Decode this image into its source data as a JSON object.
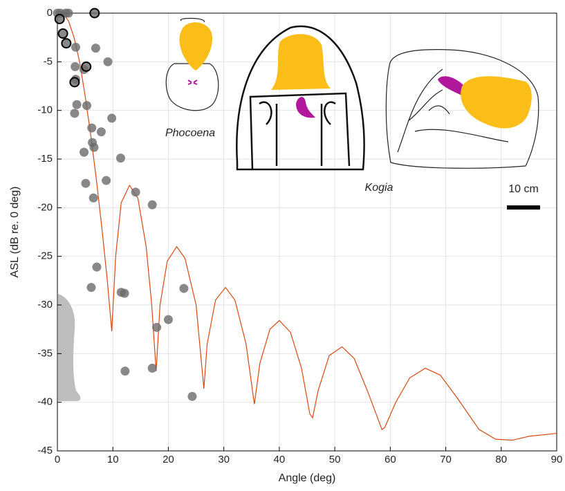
{
  "chart_data": {
    "type": "scatter",
    "xlabel": "Angle (deg)",
    "ylabel": "ASL (dB re. 0 deg)",
    "xlim": [
      0,
      90
    ],
    "ylim": [
      -45,
      0
    ],
    "xticks": [
      0,
      10,
      20,
      30,
      40,
      50,
      60,
      70,
      80,
      90
    ],
    "yticks": [
      -45,
      -40,
      -35,
      -30,
      -25,
      -20,
      -15,
      -10,
      -5,
      0
    ],
    "grid": true,
    "annotations": [
      "Phocoena",
      "Kogia",
      "10 cm"
    ],
    "series": [
      {
        "type": "line",
        "color": "#d9480f",
        "x": [
          0,
          1,
          2,
          3,
          4,
          5,
          6,
          7,
          8,
          9,
          9.8,
          10.5,
          11.5,
          13,
          14.5,
          16,
          17,
          17.8,
          18.5,
          19.8,
          21.5,
          23,
          25,
          26.4,
          27,
          28.5,
          30.3,
          32,
          34,
          35.5,
          36.5,
          38.3,
          40,
          42,
          44,
          45.5,
          46,
          47,
          49,
          51.3,
          53.5,
          56,
          58.5,
          59,
          61,
          63.5,
          66.3,
          69,
          72,
          76,
          79,
          82,
          85,
          90
        ],
        "y": [
          0,
          0,
          -0.8,
          -2.5,
          -5,
          -8.5,
          -12.5,
          -17,
          -22,
          -27.5,
          -32.7,
          -25,
          -19.5,
          -17.7,
          -19,
          -24,
          -30,
          -36.8,
          -30,
          -25.5,
          -24,
          -25.2,
          -30,
          -38.6,
          -34,
          -29.5,
          -28.2,
          -29.5,
          -34,
          -40.2,
          -36,
          -32.5,
          -31.6,
          -32.8,
          -36.5,
          -41.2,
          -41.6,
          -38.8,
          -35.2,
          -34.3,
          -35.5,
          -39,
          -42.8,
          -42.6,
          -40,
          -37.5,
          -36.5,
          -37.2,
          -39.5,
          -42.8,
          -43.8,
          -43.9,
          -43.5,
          -43.2
        ]
      },
      {
        "type": "scatter",
        "color": "#6a6a6a",
        "x": [
          0,
          0.5,
          1.5,
          2,
          3.3,
          3.2,
          3.3,
          4.8,
          6.9,
          9.1,
          3.5,
          3.1,
          5.3,
          6.2,
          7.9,
          6.3,
          6.6,
          4.8,
          9.8,
          11.4,
          8.8,
          5.1,
          6.5,
          14.1,
          17.1,
          7.1,
          6.1,
          11.5,
          12.1,
          22.8,
          20,
          17.9,
          12.2,
          17.1,
          24.3
        ],
        "y": [
          0,
          0,
          0,
          0,
          -3.5,
          -5.5,
          -6.8,
          -5.8,
          -3.6,
          -5,
          -9.4,
          -10.3,
          -9.5,
          -11.8,
          -12.2,
          -13.3,
          -13.8,
          -14.3,
          -10.8,
          -14.9,
          -17.2,
          -17.5,
          -19,
          -18.4,
          -19.7,
          -26.1,
          -28.2,
          -28.7,
          -28.8,
          -28.3,
          -31.5,
          -32.3,
          -36.8,
          -36.5,
          -39.4
        ]
      },
      {
        "type": "scatter",
        "color": "#000000",
        "x": [
          0.4,
          1,
          1.6,
          6.7,
          3.1,
          5.2
        ],
        "y": [
          -0.6,
          -2.1,
          -3.1,
          0,
          -7.1,
          -5.5
        ]
      }
    ]
  }
}
